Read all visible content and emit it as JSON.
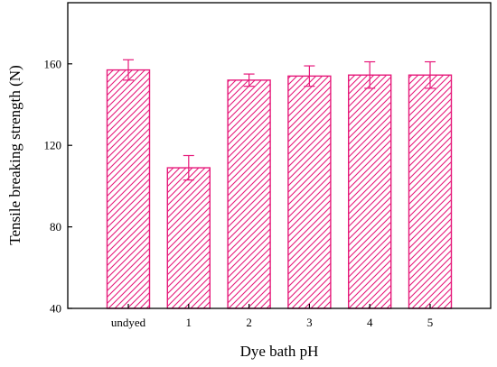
{
  "chart_data": {
    "type": "bar",
    "title": "",
    "xlabel": "Dye bath pH",
    "ylabel": "Tensile breaking strength (N)",
    "categories": [
      "undyed",
      "1",
      "2",
      "3",
      "4",
      "5"
    ],
    "values": [
      157,
      109,
      152,
      154,
      154.5,
      154.5
    ],
    "error": [
      5,
      6,
      3,
      5,
      6.5,
      6.5
    ],
    "ylim": [
      40,
      190
    ],
    "yticks": [
      40,
      80,
      120,
      160
    ],
    "grid": false,
    "legend": "none",
    "bar_style": "diagonal-hatch",
    "colors": {
      "bar": "#e6197a",
      "axis": "#000000"
    }
  }
}
